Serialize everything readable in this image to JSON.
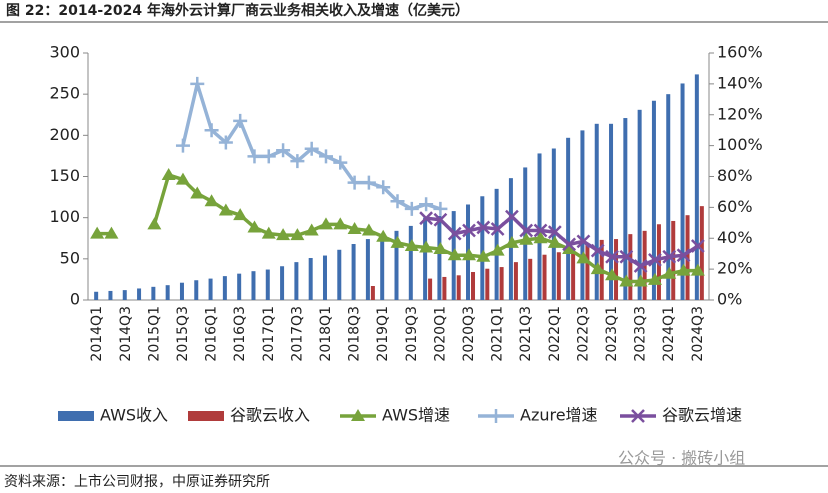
{
  "chart_data": {
    "type": "bar",
    "title": "图 22：2014-2024 年海外云计算厂商云业务相关收入及增速（亿美元）",
    "source": "资料来源：上市公司财报，中原证券研究所",
    "watermark": "公众号 · 搬砖小组",
    "categories": [
      "2014Q1",
      null,
      "2014Q3",
      null,
      "2015Q1",
      null,
      "2015Q3",
      null,
      "2016Q1",
      null,
      "2016Q3",
      null,
      "2017Q1",
      null,
      "2017Q3",
      null,
      "2018Q1",
      null,
      "2018Q3",
      null,
      "2019Q1",
      null,
      "2019Q3",
      null,
      "2020Q1",
      null,
      "2020Q3",
      null,
      "2021Q1",
      null,
      "2021Q3",
      null,
      "2022Q1",
      null,
      "2022Q3",
      null,
      "2023Q1",
      null,
      "2023Q3",
      null,
      "2024Q1",
      null,
      "2024Q3"
    ],
    "ylim": [
      0,
      300
    ],
    "yticks": [
      0,
      50,
      100,
      150,
      200,
      250,
      300
    ],
    "y2lim": [
      0,
      160
    ],
    "y2ticks": [
      {
        "value": 0,
        "label": "0%"
      },
      {
        "value": 20,
        "label": "20%"
      },
      {
        "value": 40,
        "label": "40%"
      },
      {
        "value": 60,
        "label": "60%"
      },
      {
        "value": 80,
        "label": "80%"
      },
      {
        "value": 100,
        "label": "100%"
      },
      {
        "value": 120,
        "label": "120%"
      },
      {
        "value": 140,
        "label": "140%"
      },
      {
        "value": 160,
        "label": "160%"
      }
    ],
    "legend": "bottom",
    "series": [
      {
        "name": "AWS收入",
        "type": "bar",
        "color": "#3f6eaf",
        "values": [
          10,
          11,
          12,
          14,
          16,
          18,
          21,
          24,
          26,
          29,
          32,
          35,
          37,
          41,
          46,
          51,
          54,
          61,
          68,
          74,
          77,
          84,
          90,
          100,
          102,
          108,
          116,
          126,
          135,
          148,
          161,
          178,
          184,
          197,
          206,
          214,
          214,
          221,
          231,
          242,
          250,
          263,
          274
        ]
      },
      {
        "name": "谷歌云收入",
        "type": "bar",
        "color": "#b03b3b",
        "values": [
          null,
          null,
          null,
          null,
          null,
          null,
          null,
          null,
          null,
          null,
          null,
          null,
          null,
          null,
          null,
          null,
          null,
          null,
          null,
          17,
          null,
          null,
          null,
          26,
          28,
          30,
          34,
          38,
          40,
          46,
          50,
          55,
          58,
          63,
          69,
          73,
          74,
          80,
          84,
          92,
          96,
          103,
          114
        ]
      },
      {
        "name": "AWS增速",
        "type": "line",
        "marker": "triangle",
        "axis": "y2",
        "color": "#77a33b",
        "values": [
          43,
          43,
          null,
          null,
          49,
          81,
          78,
          69,
          64,
          58,
          55,
          47,
          43,
          42,
          42,
          45,
          49,
          49,
          46,
          45,
          41,
          37,
          35,
          34,
          33,
          29,
          29,
          28,
          32,
          37,
          39,
          40,
          37,
          33,
          27,
          20,
          16,
          12,
          12,
          13,
          17,
          19,
          19
        ]
      },
      {
        "name": "Azure增速",
        "type": "line",
        "marker": "plus",
        "axis": "y2",
        "color": "#95b3d7",
        "values": [
          null,
          null,
          null,
          null,
          null,
          null,
          100,
          140,
          110,
          102,
          116,
          93,
          93,
          97,
          90,
          98,
          93,
          89,
          76,
          76,
          73,
          64,
          59,
          62,
          59,
          null,
          null,
          null,
          null,
          null,
          null,
          null,
          null,
          null,
          null,
          null,
          null,
          null,
          null,
          null,
          null,
          null,
          null
        ]
      },
      {
        "name": "谷歌云增速",
        "type": "line",
        "marker": "x",
        "axis": "y2",
        "color": "#7a4f9e",
        "values": [
          null,
          null,
          null,
          null,
          null,
          null,
          null,
          null,
          null,
          null,
          null,
          null,
          null,
          null,
          null,
          null,
          null,
          null,
          null,
          null,
          null,
          null,
          null,
          53,
          52,
          43,
          45,
          47,
          46,
          54,
          45,
          45,
          44,
          36,
          38,
          32,
          28,
          28,
          22,
          26,
          28,
          29,
          35
        ]
      }
    ]
  }
}
